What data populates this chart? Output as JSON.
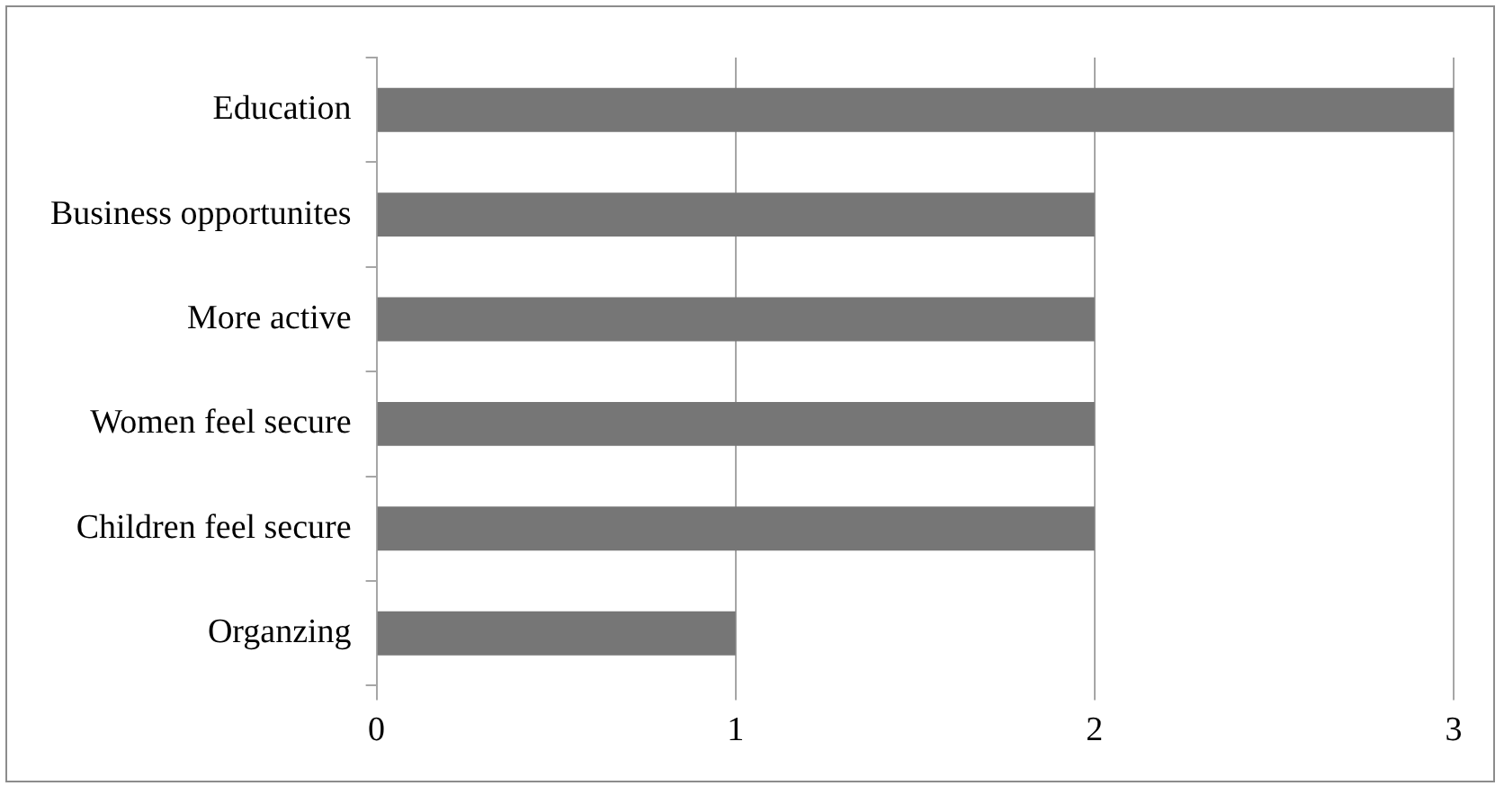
{
  "chart_data": {
    "type": "bar",
    "orientation": "horizontal",
    "categories": [
      "Education",
      "Business opportunites",
      "More active",
      "Women feel secure",
      "Children feel secure",
      "Organzing"
    ],
    "values": [
      3,
      2,
      2,
      2,
      2,
      1
    ],
    "color": "#767676",
    "xlim": [
      0,
      3
    ],
    "xticks": [
      0,
      1,
      2,
      3
    ],
    "grid": "x",
    "legend": false
  }
}
